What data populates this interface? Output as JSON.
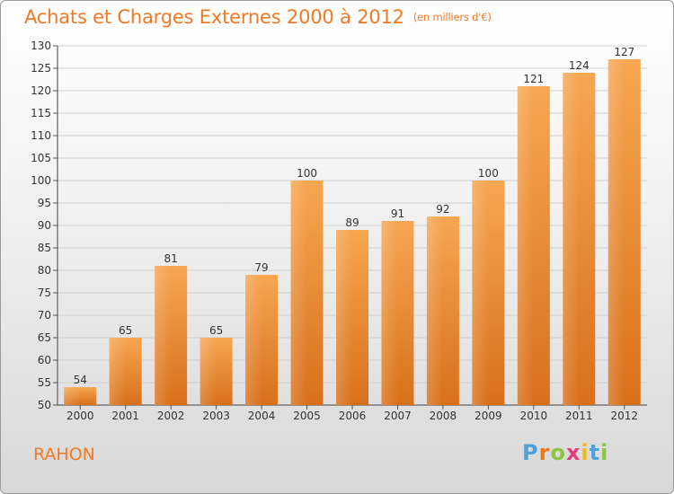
{
  "title": "Achats et Charges Externes 2000 à 2012",
  "unit": "(en milliers d'€)",
  "commune": "RAHON",
  "logo": {
    "letters": [
      "P",
      "r",
      "o",
      "x",
      "i",
      "t",
      "i"
    ],
    "colors": [
      "#4da3d9",
      "#e8781a",
      "#8cc63f",
      "#e23c7a",
      "#f1b81c",
      "#4da3d9",
      "#8cc63f"
    ]
  },
  "chart_data": {
    "type": "bar",
    "categories": [
      "2000",
      "2001",
      "2002",
      "2003",
      "2004",
      "2005",
      "2006",
      "2007",
      "2008",
      "2009",
      "2010",
      "2011",
      "2012"
    ],
    "values": [
      54,
      65,
      81,
      65,
      79,
      100,
      89,
      91,
      92,
      100,
      121,
      124,
      127
    ],
    "title": "Achats et Charges Externes 2000 à 2012",
    "ylim": [
      50,
      130
    ],
    "yticks": [
      50,
      55,
      60,
      65,
      70,
      75,
      80,
      85,
      90,
      95,
      100,
      105,
      110,
      115,
      120,
      125,
      130
    ],
    "grid": true,
    "bar_color": "#f08a2c"
  }
}
